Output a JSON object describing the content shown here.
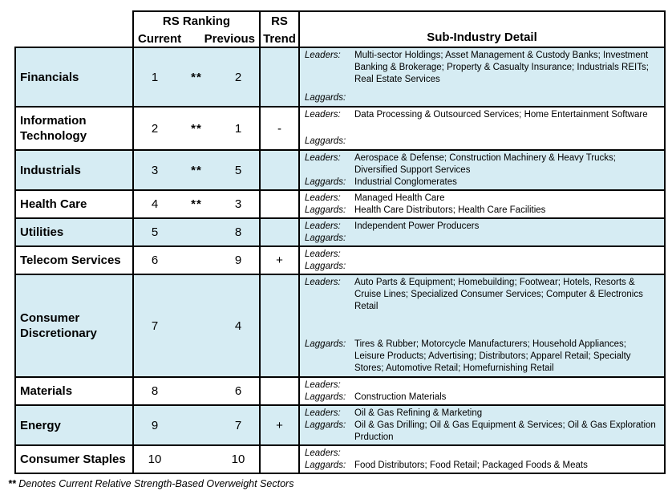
{
  "header": {
    "rs_ranking": "RS Ranking",
    "current": "Current",
    "previous": "Previous",
    "rs_trend_line1": "RS",
    "rs_trend_line2": "Trend",
    "sub_industry": "Sub-Industry Detail"
  },
  "labels": {
    "leaders": "Leaders:",
    "laggards": "Laggards:"
  },
  "colors": {
    "row_highlight": "#d6ecf3",
    "border": "#000000",
    "text": "#000000"
  },
  "footnote": {
    "marker": "**",
    "text": "Denotes Current Relative Strength-Based Overweight Sectors"
  },
  "rows": [
    {
      "sector": "Financials",
      "current": "1",
      "overweight_marker": "**",
      "previous": "2",
      "trend": "",
      "leaders": "Multi-sector Holdings; Asset Management & Custody Banks; Investment Banking & Brokerage; Property & Casualty Insurance; Industrials REITs; Real Estate Services",
      "laggards": ""
    },
    {
      "sector": "Information Technology",
      "current": "2",
      "overweight_marker": "**",
      "previous": "1",
      "trend": "-",
      "leaders": "Data Processing & Outsourced Services; Home Entertainment Software",
      "laggards": ""
    },
    {
      "sector": "Industrials",
      "current": "3",
      "overweight_marker": "**",
      "previous": "5",
      "trend": "",
      "leaders": "Aerospace & Defense; Construction Machinery & Heavy Trucks; Diversified Support Services",
      "laggards": "Industrial Conglomerates"
    },
    {
      "sector": "Health Care",
      "current": "4",
      "overweight_marker": "**",
      "previous": "3",
      "trend": "",
      "leaders": "Managed Health Care",
      "laggards": "Health Care Distributors; Health Care Facilities"
    },
    {
      "sector": "Utilities",
      "current": "5",
      "overweight_marker": "",
      "previous": "8",
      "trend": "",
      "leaders": "Independent Power Producers",
      "laggards": ""
    },
    {
      "sector": "Telecom Services",
      "current": "6",
      "overweight_marker": "",
      "previous": "9",
      "trend": "+",
      "leaders": "",
      "laggards": ""
    },
    {
      "sector": "Consumer Discretionary",
      "current": "7",
      "overweight_marker": "",
      "previous": "4",
      "trend": "",
      "leaders": "Auto Parts & Equipment; Homebuilding; Footwear; Hotels, Resorts & Cruise Lines; Specialized Consumer Services; Computer & Electronics Retail",
      "laggards": "Tires & Rubber; Motorcycle Manufacturers; Household Appliances; Leisure Products; Advertising; Distributors; Apparel Retail; Specialty Stores; Automotive Retail; Homefurnishing Retail"
    },
    {
      "sector": "Materials",
      "current": "8",
      "overweight_marker": "",
      "previous": "6",
      "trend": "",
      "leaders": "",
      "laggards": "Construction Materials"
    },
    {
      "sector": "Energy",
      "current": "9",
      "overweight_marker": "",
      "previous": "7",
      "trend": "+",
      "leaders": "Oil & Gas Refining & Marketing",
      "laggards": "Oil & Gas Drilling; Oil & Gas Equipment & Services; Oil & Gas Exploration Prduction"
    },
    {
      "sector": "Consumer Staples",
      "current": "10",
      "overweight_marker": "",
      "previous": "10",
      "trend": "",
      "leaders": "",
      "laggards": "Food Distributors; Food Retail; Packaged Foods & Meats"
    }
  ]
}
